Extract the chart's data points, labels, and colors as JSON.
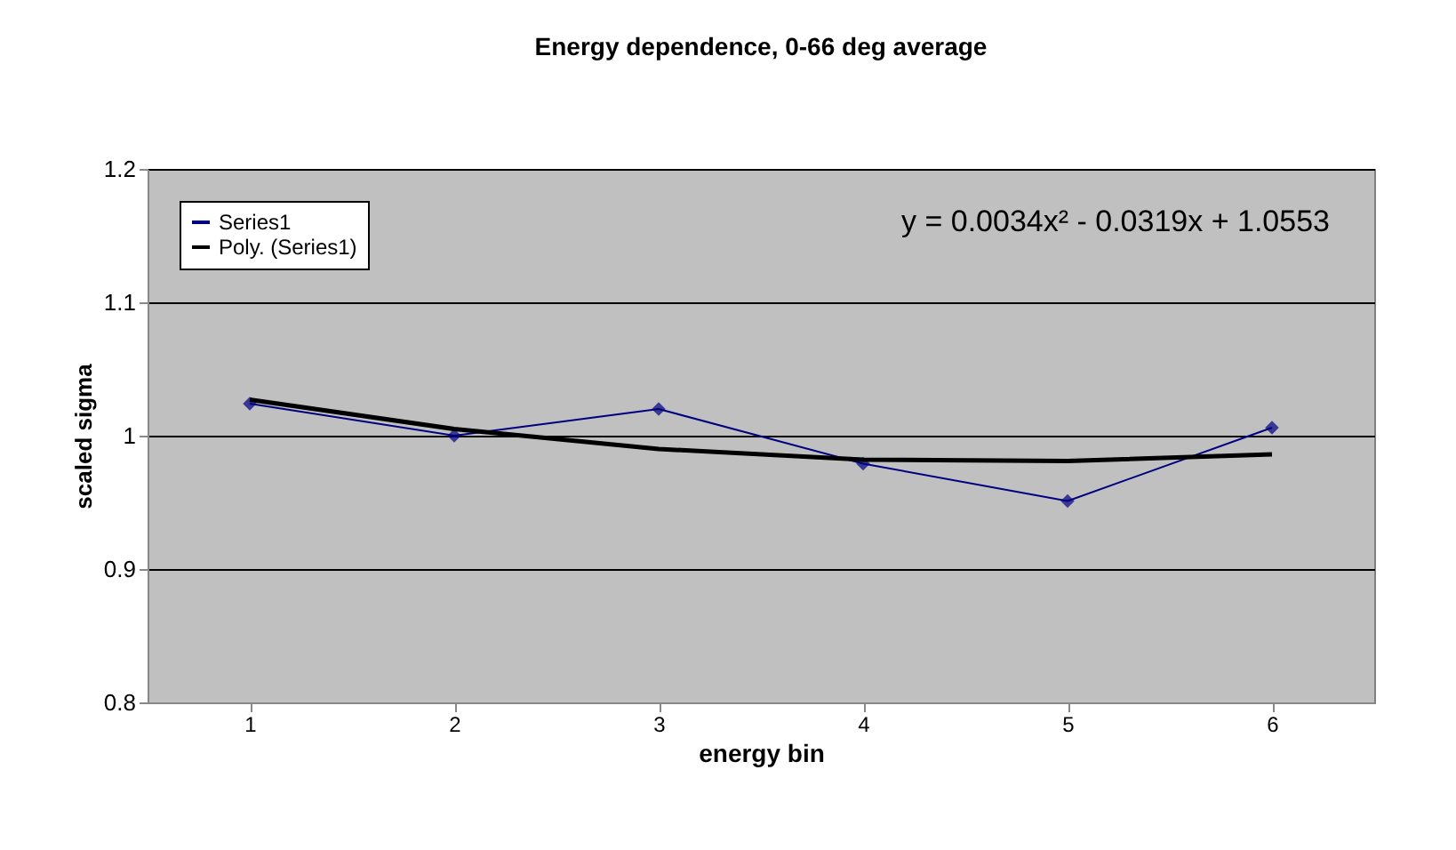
{
  "chart_data": {
    "type": "line",
    "title": "Energy dependence, 0-66 deg average",
    "xlabel": "energy bin",
    "ylabel": "scaled sigma",
    "categories": [
      "1",
      "2",
      "3",
      "4",
      "5",
      "6"
    ],
    "series": [
      {
        "name": "Series1",
        "color": "#000080",
        "marker": "diamond",
        "values": [
          1.024,
          1.0,
          1.02,
          0.979,
          0.951,
          1.006
        ]
      },
      {
        "name": "Poly. (Series1)",
        "color": "#000000",
        "marker": "none",
        "values": [
          1.027,
          1.005,
          0.99,
          0.982,
          0.981,
          0.986
        ]
      }
    ],
    "ylim": [
      0.8,
      1.2
    ],
    "yticks": [
      0.8,
      0.9,
      1,
      1.1,
      1.2
    ],
    "grid": "y",
    "legend": "top left",
    "annotations": [
      "y = 0.0034x² - 0.0319x + 1.0553"
    ]
  }
}
